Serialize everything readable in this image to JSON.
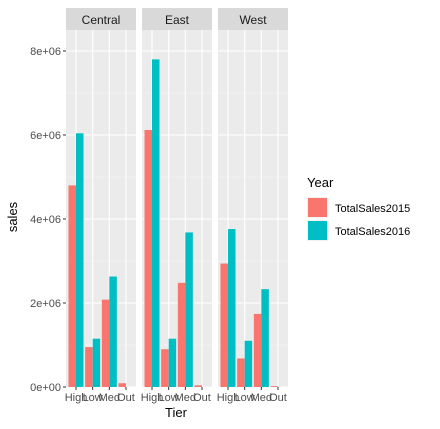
{
  "chart_data": {
    "type": "bar",
    "facets": [
      "Central",
      "East",
      "West"
    ],
    "categories": [
      "High",
      "Low",
      "Med",
      "Out"
    ],
    "xlabel": "Tier",
    "ylabel": "sales",
    "ylim": [
      0,
      8500000
    ],
    "yticks": [
      0,
      2000000,
      4000000,
      6000000,
      8000000
    ],
    "ytick_labels": [
      "0e+00",
      "2e+06",
      "4e+06",
      "6e+06",
      "8e+06"
    ],
    "legend": {
      "title": "Year",
      "position": "right"
    },
    "series": [
      {
        "name": "TotalSales2015",
        "color": "#F8766D",
        "values": {
          "Central": [
            4800000,
            950000,
            2080000,
            90000
          ],
          "East": [
            6120000,
            900000,
            2480000,
            40000
          ],
          "West": [
            2940000,
            680000,
            1740000,
            20000
          ]
        }
      },
      {
        "name": "TotalSales2016",
        "color": "#00BFC4",
        "values": {
          "Central": [
            6040000,
            1150000,
            2630000,
            0
          ],
          "East": [
            7800000,
            1150000,
            3680000,
            0
          ],
          "West": [
            3760000,
            1100000,
            2330000,
            0
          ]
        }
      }
    ]
  }
}
